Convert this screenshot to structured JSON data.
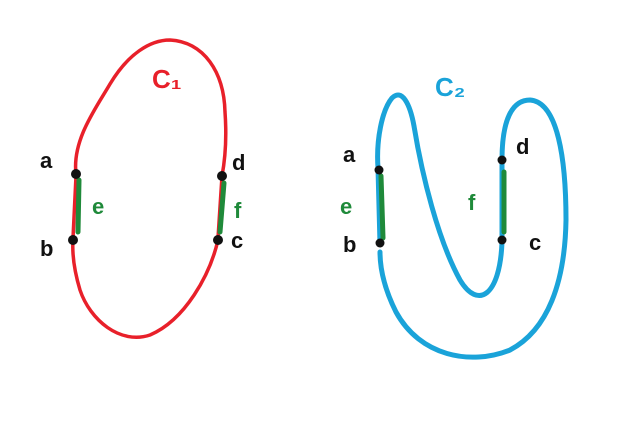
{
  "colors": {
    "curve1": "#e8202a",
    "curve2": "#1aa3d9",
    "edge": "#1f8a3a",
    "point": "#111111"
  },
  "curve1": {
    "name": "C₁",
    "points": {
      "a": "a",
      "b": "b",
      "c": "c",
      "d": "d"
    },
    "edges": {
      "e": "e",
      "f": "f"
    }
  },
  "curve2": {
    "name": "C₂",
    "points": {
      "a": "a",
      "b": "b",
      "c": "c",
      "d": "d"
    },
    "edges": {
      "e": "e",
      "f": "f"
    }
  }
}
